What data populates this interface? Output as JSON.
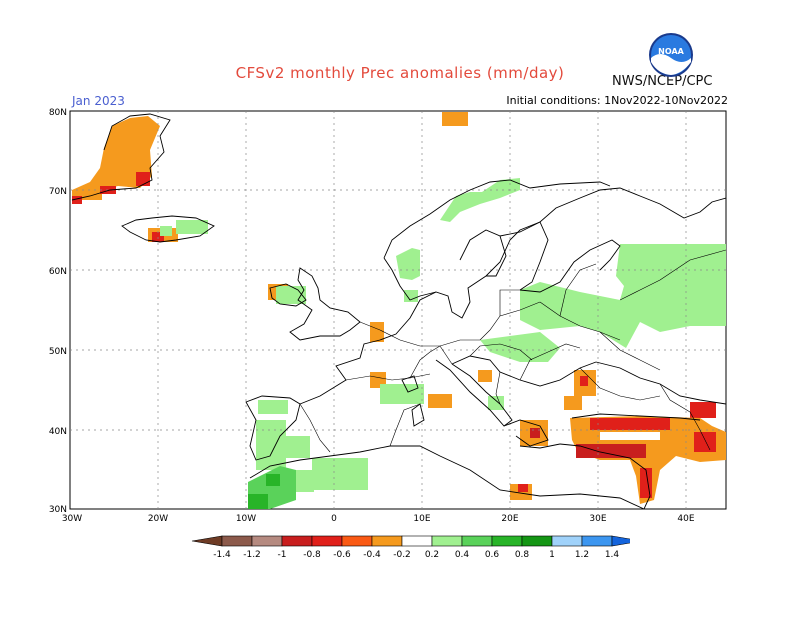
{
  "header": {
    "title": "CFSv2 monthly Prec anomalies (mm/day)",
    "valid_month": "Jan 2023",
    "initial_conditions": "Initial conditions: 1Nov2022-10Nov2022",
    "agency": "NWS/NCEP/CPC",
    "logo_text": "NOAA"
  },
  "map": {
    "lat_labels": [
      "80N",
      "70N",
      "60N",
      "50N",
      "40N",
      "30N"
    ],
    "lon_labels": [
      "30W",
      "20W",
      "10W",
      "0",
      "10E",
      "20E",
      "30E",
      "40E"
    ]
  },
  "colorbar": {
    "labels": [
      "-1.4",
      "-1.2",
      "-1",
      "-0.8",
      "-0.6",
      "-0.4",
      "-0.2",
      "0.2",
      "0.4",
      "0.6",
      "0.8",
      "1",
      "1.2",
      "1.4"
    ],
    "colors": [
      "#6e3b25",
      "#8c5a4b",
      "#b58a80",
      "#c81e1e",
      "#e0201a",
      "#fa5a14",
      "#f59a1e",
      "#ffffff",
      "#a0f090",
      "#5ad25a",
      "#28b428",
      "#149614",
      "#a0d2fa",
      "#3c96f0",
      "#1464dc"
    ]
  },
  "colors": {
    "wet_light": "#a0f090",
    "wet_mid": "#5ad25a",
    "wet_dark": "#28b428",
    "dry_orange": "#f59a1e",
    "dry_red": "#e0201a",
    "dry_darkred": "#c81e1e",
    "title_red": "#e34a3c",
    "label_blue": "#4a5fd0"
  }
}
